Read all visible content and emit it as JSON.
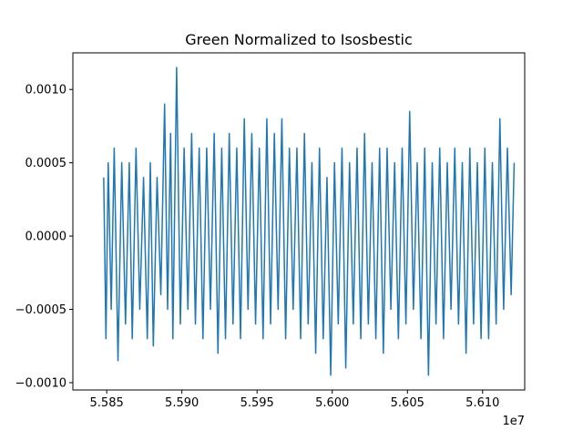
{
  "chart_data": {
    "type": "line",
    "title": "Green Normalized to Isosbestic",
    "xlabel": "",
    "ylabel": "",
    "x_offset_label": "1e7",
    "xlim": [
      55827500,
      56128000
    ],
    "ylim": [
      -0.00105,
      0.00125
    ],
    "x_ticks": [
      55850000,
      55900000,
      55950000,
      56000000,
      56050000,
      56100000
    ],
    "x_tick_labels": [
      "5.585",
      "5.590",
      "5.595",
      "5.600",
      "5.605",
      "5.610"
    ],
    "y_ticks": [
      -0.001,
      -0.0005,
      0.0,
      0.0005,
      0.001
    ],
    "y_tick_labels": [
      "−0.0010",
      "−0.0005",
      "0.0000",
      "0.0005",
      "0.0010"
    ],
    "grid": false,
    "legend": "none",
    "series": [
      {
        "color": "#1f77b4",
        "x": [
          55848000,
          55849500,
          55851000,
          55853000,
          55855000,
          55857500,
          55860000,
          55862500,
          55865000,
          55867000,
          55869500,
          55872000,
          55874500,
          55877000,
          55879000,
          55881000,
          55883500,
          55886000,
          55888500,
          55890500,
          55892500,
          55894000,
          55896500,
          55899000,
          55901500,
          55904000,
          55906500,
          55909000,
          55911500,
          55914000,
          55916500,
          55919000,
          55921500,
          55924000,
          55926500,
          55929000,
          55931500,
          55934000,
          55936500,
          55939000,
          55941500,
          55944000,
          55946500,
          55949000,
          55951500,
          55954000,
          55956500,
          55959000,
          55961500,
          55964000,
          55966500,
          55969000,
          55971500,
          55974000,
          55976500,
          55979000,
          55981500,
          55984000,
          55986500,
          55989000,
          55991500,
          55994000,
          55996500,
          55999000,
          56001500,
          56004000,
          56006500,
          56009000,
          56011500,
          56014000,
          56016500,
          56019000,
          56021500,
          56024000,
          56026500,
          56029000,
          56031500,
          56034000,
          56036500,
          56039000,
          56041500,
          56044000,
          56046500,
          56049000,
          56051500,
          56054000,
          56056500,
          56059000,
          56061500,
          56064000,
          56066500,
          56069000,
          56071500,
          56074000,
          56076500,
          56079000,
          56081500,
          56084000,
          56086500,
          56089000,
          56091500,
          56094000,
          56096500,
          56099000,
          56101500,
          56104000,
          56106500,
          56109000,
          56111500,
          56114000,
          56116500,
          56119000,
          56121000
        ],
        "y": [
          0.0004,
          -0.0007,
          0.0005,
          -0.0005,
          0.0006,
          -0.00085,
          0.0005,
          -0.0006,
          0.0005,
          -0.0007,
          0.0006,
          -0.0005,
          0.0004,
          -0.0007,
          0.0005,
          -0.00075,
          0.0004,
          -0.0004,
          0.0009,
          -0.0005,
          0.0007,
          -0.0007,
          0.00115,
          -0.0006,
          0.0006,
          -0.0005,
          0.0007,
          -0.0006,
          0.0006,
          -0.0007,
          0.0006,
          -0.0005,
          0.0007,
          -0.0008,
          0.0006,
          -0.0007,
          0.0007,
          -0.0006,
          0.0006,
          -0.0007,
          0.0008,
          -0.0005,
          0.0007,
          -0.0006,
          0.0006,
          -0.0007,
          0.0008,
          -0.0006,
          0.0007,
          -0.0005,
          0.0008,
          -0.0007,
          0.0006,
          -0.0005,
          0.0006,
          -0.0007,
          0.0007,
          -0.0006,
          0.0005,
          -0.0008,
          0.0006,
          -0.0007,
          0.0004,
          -0.00095,
          0.0005,
          -0.0006,
          0.0006,
          -0.0009,
          0.0005,
          -0.0006,
          0.0006,
          -0.0007,
          0.0007,
          -0.0006,
          0.0005,
          -0.0007,
          0.0006,
          -0.0008,
          0.0006,
          -0.0005,
          0.0005,
          -0.0007,
          0.0006,
          -0.0006,
          0.00085,
          -0.0005,
          0.0005,
          -0.0007,
          0.0006,
          -0.00095,
          0.0005,
          -0.0006,
          0.0006,
          -0.0007,
          0.0005,
          -0.0005,
          0.0006,
          -0.0006,
          0.0005,
          -0.0008,
          0.0006,
          -0.0006,
          0.0005,
          -0.0007,
          0.0006,
          -0.0007,
          0.0005,
          -0.0006,
          0.0008,
          -0.0005,
          0.0006,
          -0.0004,
          0.0005
        ]
      }
    ]
  }
}
